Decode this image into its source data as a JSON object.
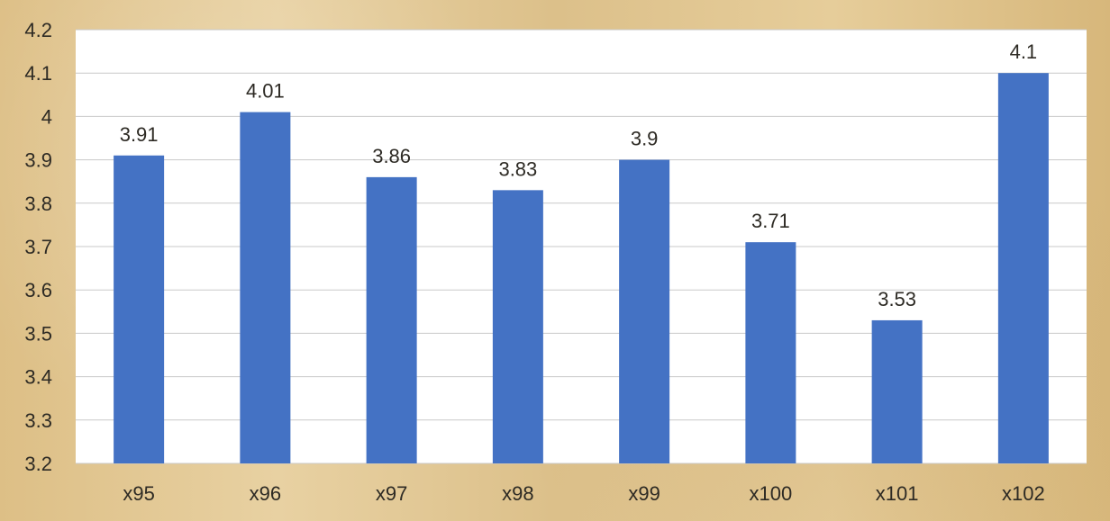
{
  "chart_data": {
    "type": "bar",
    "categories": [
      "x95",
      "x96",
      "x97",
      "x98",
      "x99",
      "x100",
      "x101",
      "x102"
    ],
    "values": [
      3.91,
      4.01,
      3.86,
      3.83,
      3.9,
      3.71,
      3.53,
      4.1
    ],
    "data_labels": [
      "3.91",
      "4.01",
      "3.86",
      "3.83",
      "3.9",
      "3.71",
      "3.53",
      "4.1"
    ],
    "y_ticks": [
      "3.2",
      "3.3",
      "3.4",
      "3.5",
      "3.6",
      "3.7",
      "3.8",
      "3.9",
      "4",
      "4.1",
      "4.2"
    ],
    "ylim": [
      3.2,
      4.2
    ],
    "grid": true,
    "colors": {
      "bar": "#4472c4",
      "grid": "#c9c9c9",
      "plot_bg": "#ffffff"
    }
  }
}
